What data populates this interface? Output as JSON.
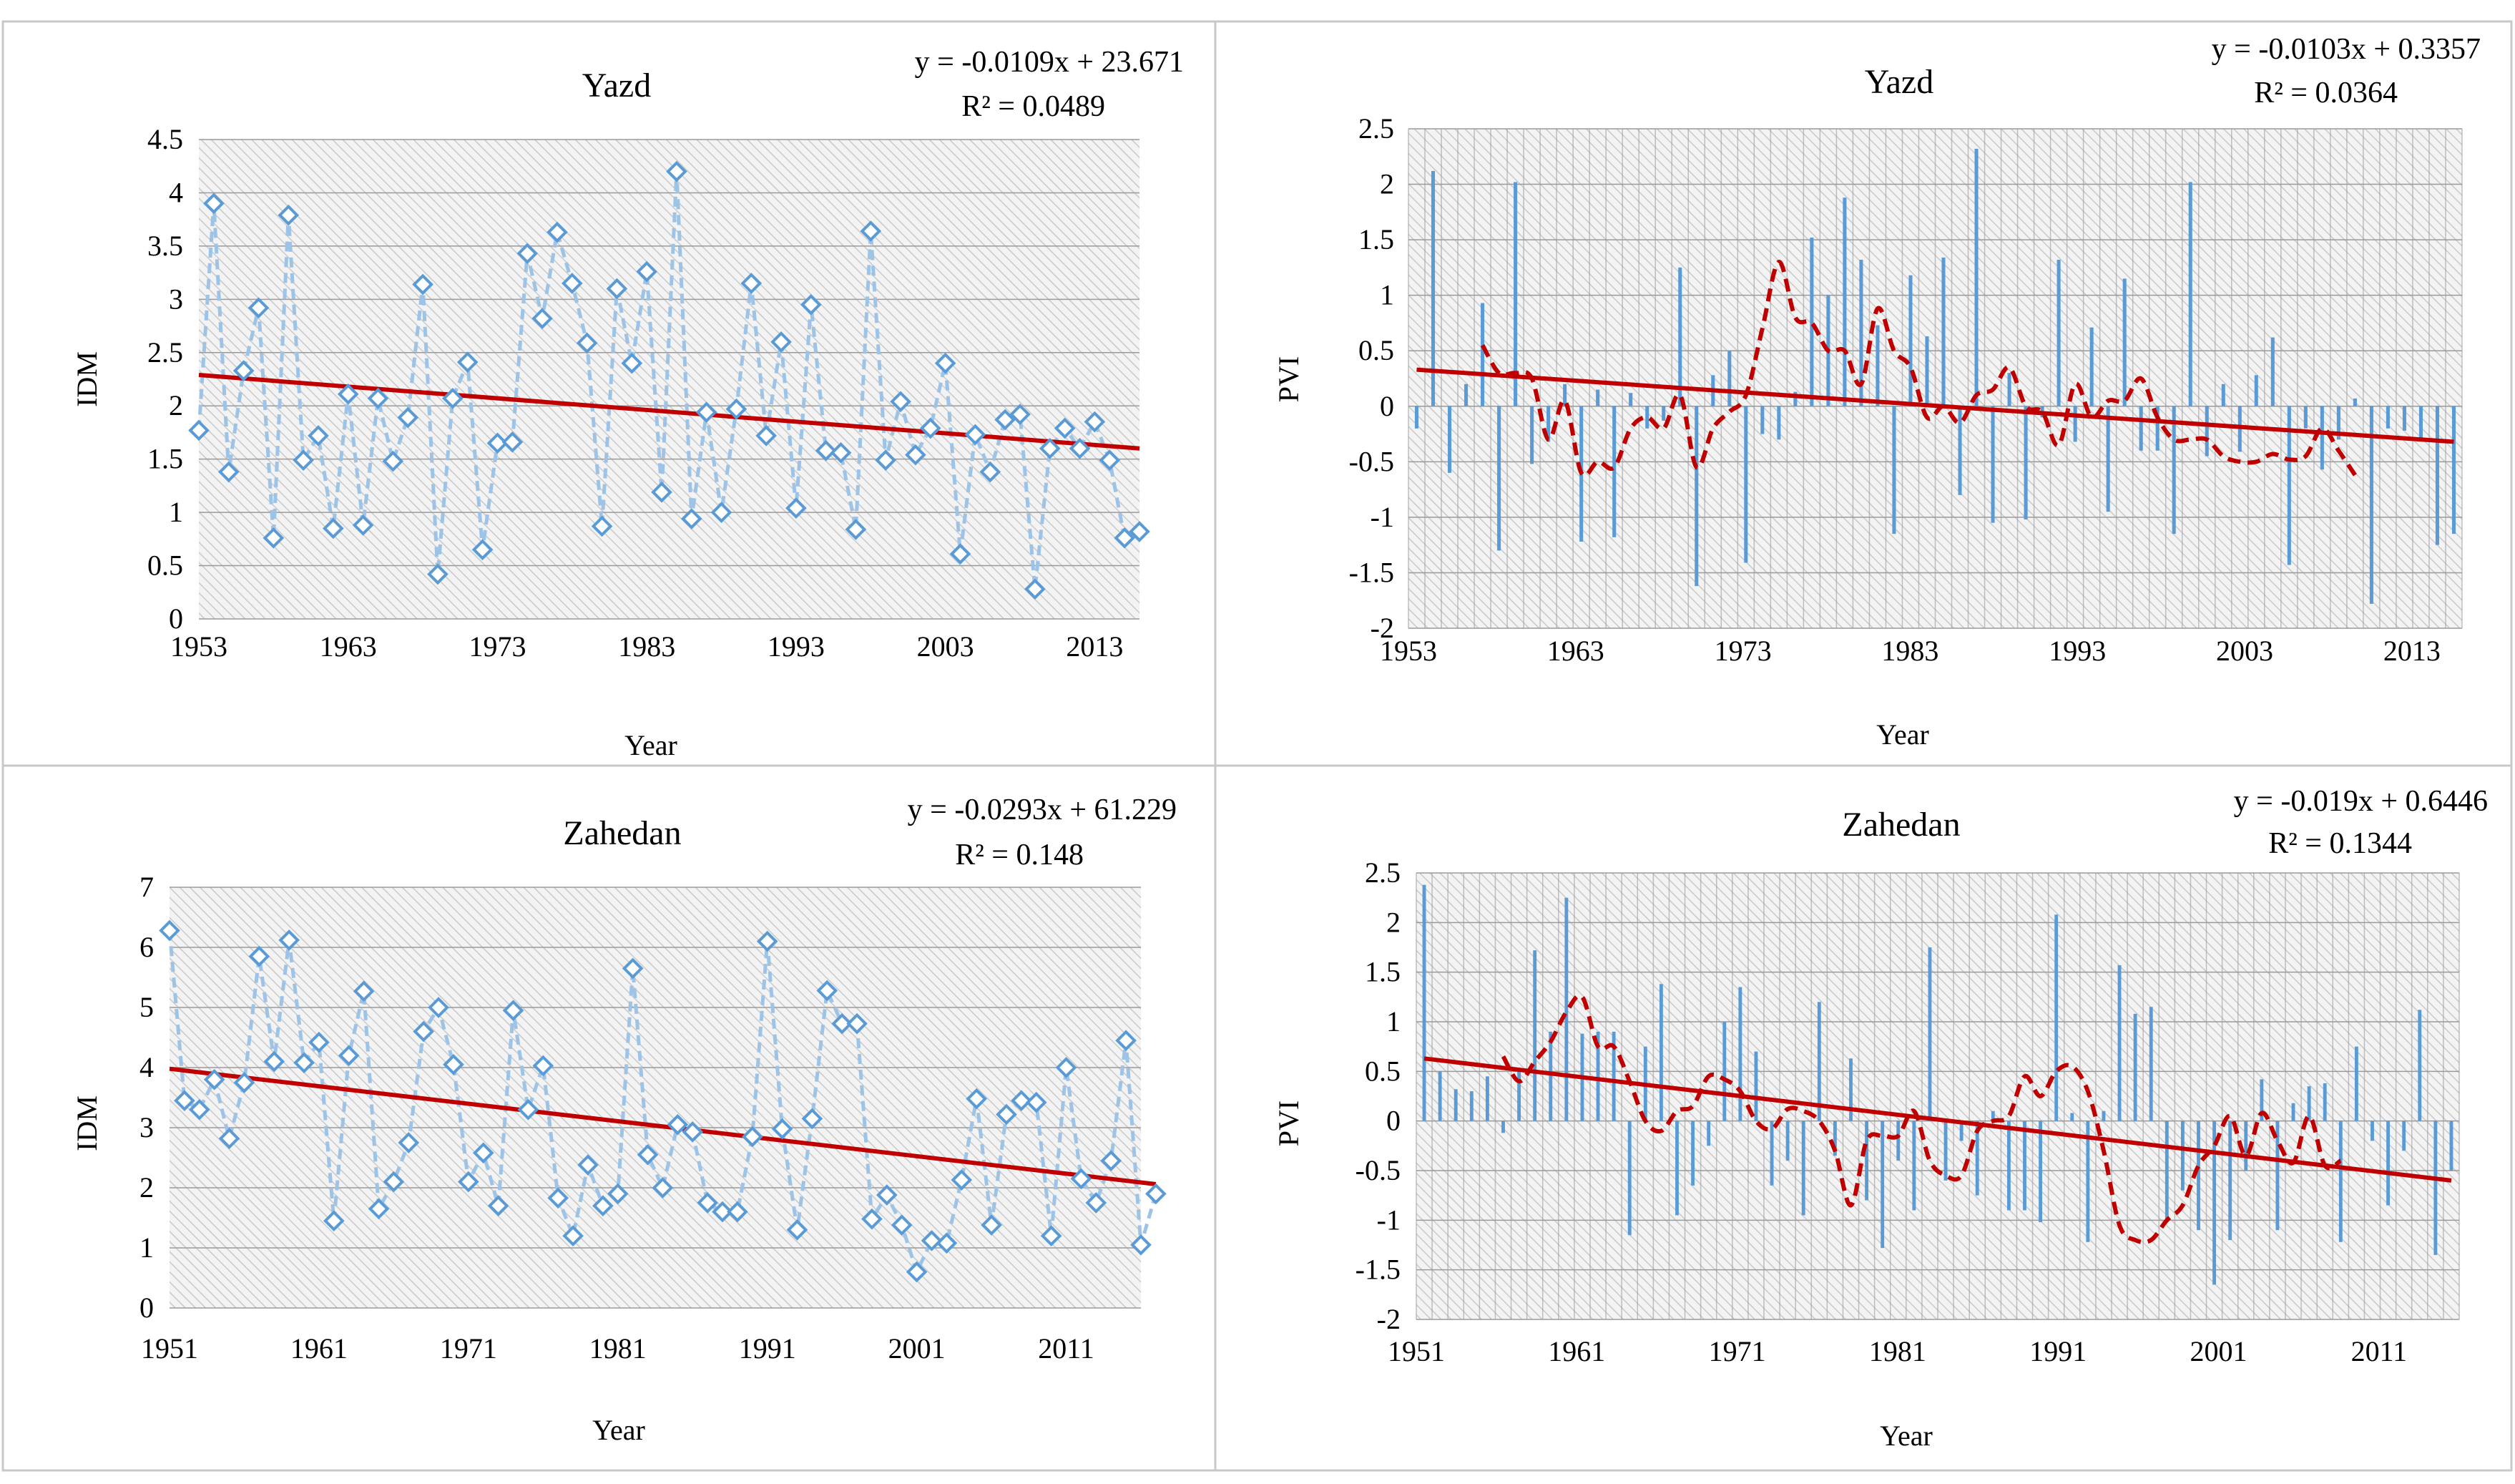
{
  "colors": {
    "series": "#5b9bd5",
    "series_line": "#9dc3e6",
    "trend": "#c00000",
    "moving_avg": "#c00000",
    "plot_bg": "#ededed",
    "hatch": "#c9c9c9"
  },
  "chart_data": [
    {
      "id": "yazd-idm",
      "type": "line",
      "title": "Yazd",
      "xlabel": "Year",
      "ylabel": "IDM",
      "equation": "y = -0.0109x + 23.671",
      "r2": "R² = 0.0489",
      "x_start": 1953,
      "xlim": [
        1953,
        2016
      ],
      "ylim": [
        0,
        4.5
      ],
      "yticks": [
        "0",
        "0.5",
        "1",
        "1.5",
        "2",
        "2.5",
        "3",
        "3.5",
        "4",
        "4.5"
      ],
      "xticks": [
        "1953",
        "1963",
        "1973",
        "1983",
        "1993",
        "2003",
        "2013"
      ],
      "values": [
        1.77,
        3.9,
        1.38,
        2.33,
        2.92,
        0.76,
        3.79,
        1.49,
        1.72,
        0.85,
        2.11,
        0.88,
        2.07,
        1.48,
        1.89,
        3.14,
        0.42,
        2.07,
        2.41,
        0.65,
        1.65,
        1.66,
        3.43,
        2.82,
        3.63,
        3.15,
        2.59,
        0.87,
        3.1,
        2.4,
        3.26,
        1.19,
        4.2,
        0.94,
        1.94,
        1.0,
        1.97,
        3.15,
        1.72,
        2.6,
        1.04,
        2.95,
        1.58,
        1.56,
        0.84,
        3.64,
        1.49,
        2.04,
        1.54,
        1.79,
        2.4,
        0.61,
        1.73,
        1.38,
        1.87,
        1.92,
        0.28,
        1.6,
        1.79,
        1.6,
        1.85,
        1.49,
        0.76,
        0.82
      ],
      "trend_start": 2.29,
      "trend_end": 1.6
    },
    {
      "id": "yazd-pvi",
      "type": "bar",
      "title": "Yazd",
      "xlabel": "Year",
      "ylabel": "PVI",
      "equation": "y = -0.0103x + 0.3357",
      "r2": "R² = 0.0364",
      "x_start": 1953,
      "xlim": [
        1953,
        2016
      ],
      "ylim": [
        -2,
        2.5
      ],
      "yticks": [
        "-2",
        "-1.5",
        "-1",
        "-0.5",
        "0",
        "0.5",
        "1",
        "1.5",
        "2",
        "2.5"
      ],
      "xticks": [
        "1953",
        "1963",
        "1973",
        "1983",
        "1993",
        "2003",
        "2013"
      ],
      "values": [
        -0.2,
        2.12,
        -0.6,
        0.2,
        0.93,
        -1.3,
        2.02,
        -0.52,
        -0.32,
        0.2,
        -1.22,
        0.15,
        -1.18,
        0.12,
        -0.2,
        -0.13,
        1.25,
        -1.62,
        0.28,
        0.5,
        -1.41,
        -0.25,
        -0.3,
        0.13,
        1.52,
        1.0,
        1.88,
        1.32,
        0.73,
        -1.15,
        1.18,
        0.63,
        1.34,
        -0.8,
        2.32,
        -1.05,
        0.3,
        -1.02,
        -0.1,
        1.32,
        -0.32,
        0.71,
        -0.95,
        1.15,
        -0.4,
        -0.4,
        -1.15,
        2.02,
        -0.45,
        0.2,
        -0.41,
        0.28,
        0.62,
        -1.43,
        -0.2,
        -0.57,
        -0.3,
        0.07,
        -1.78,
        -0.2,
        -0.22,
        -0.3,
        -1.25,
        -1.15
      ],
      "moving_avg_start": 4,
      "moving_avg": [
        0.55,
        0.3,
        0.3,
        0.25,
        -0.3,
        0.05,
        -0.6,
        -0.5,
        -0.55,
        -0.2,
        -0.1,
        -0.2,
        0.1,
        -0.55,
        -0.2,
        -0.05,
        0.1,
        0.7,
        1.3,
        0.8,
        0.75,
        0.5,
        0.5,
        0.2,
        0.88,
        0.5,
        0.35,
        -0.1,
        0.0,
        -0.15,
        0.1,
        0.15,
        0.35,
        0.0,
        -0.05,
        -0.35,
        0.2,
        -0.1,
        0.05,
        0.05,
        0.25,
        -0.1,
        -0.3,
        -0.3,
        -0.3,
        -0.45,
        -0.5,
        -0.5,
        -0.43,
        -0.48,
        -0.45,
        -0.2,
        -0.4,
        -0.62
      ],
      "trend_start": 0.33,
      "trend_end": -0.32
    },
    {
      "id": "zahedan-idm",
      "type": "line",
      "title": "Zahedan",
      "xlabel": "Year",
      "ylabel": "IDM",
      "equation": "y = -0.0293x + 61.229",
      "r2": "R² = 0.148",
      "x_start": 1951,
      "xlim": [
        1951,
        2016
      ],
      "ylim": [
        0,
        7
      ],
      "yticks": [
        "0",
        "1",
        "2",
        "3",
        "4",
        "5",
        "6",
        "7"
      ],
      "xticks": [
        "1951",
        "1961",
        "1971",
        "1981",
        "1991",
        "2001",
        "2011"
      ],
      "values": [
        6.28,
        3.45,
        3.3,
        3.8,
        2.82,
        3.75,
        5.85,
        4.1,
        6.12,
        4.08,
        4.42,
        1.45,
        4.2,
        5.27,
        1.65,
        2.1,
        2.75,
        4.6,
        5.0,
        4.05,
        2.1,
        2.58,
        1.7,
        4.95,
        3.3,
        4.03,
        1.83,
        1.2,
        2.38,
        1.7,
        1.9,
        5.65,
        2.55,
        2.0,
        3.05,
        2.93,
        1.75,
        1.6,
        1.6,
        2.85,
        6.1,
        2.98,
        1.3,
        3.15,
        5.28,
        4.73,
        4.73,
        1.48,
        1.88,
        1.38,
        0.6,
        1.12,
        1.08,
        2.13,
        3.48,
        1.38,
        3.22,
        3.45,
        3.42,
        1.2,
        4.0,
        2.15,
        1.75,
        2.45,
        4.45,
        1.05,
        1.9
      ],
      "trend_start": 3.98,
      "trend_end": 2.06
    },
    {
      "id": "zahedan-pvi",
      "type": "bar",
      "title": "Zahedan",
      "xlabel": "Year",
      "ylabel": "PVI",
      "equation": "y = -0.019x + 0.6446",
      "r2": "R² = 0.1344",
      "x_start": 1951,
      "xlim": [
        1951,
        2016
      ],
      "ylim": [
        -2,
        2.5
      ],
      "yticks": [
        "-2",
        "-1.5",
        "-1",
        "-0.5",
        "0",
        "0.5",
        "1",
        "1.5",
        "2",
        "2.5"
      ],
      "xticks": [
        "1951",
        "1961",
        "1971",
        "1981",
        "1991",
        "2001",
        "2011"
      ],
      "values": [
        2.38,
        0.5,
        0.32,
        0.3,
        0.45,
        -0.12,
        0.5,
        1.72,
        0.9,
        2.25,
        0.88,
        0.9,
        0.9,
        -1.15,
        0.75,
        1.38,
        -0.95,
        -0.65,
        -0.25,
        1.0,
        1.35,
        0.7,
        -0.65,
        -0.4,
        -0.95,
        1.2,
        -0.35,
        0.63,
        -0.8,
        -1.28,
        -0.4,
        -0.9,
        1.75,
        -0.6,
        -0.2,
        -0.75,
        0.1,
        -0.9,
        -0.9,
        -1.02,
        2.08,
        0.08,
        -1.22,
        0.1,
        1.57,
        1.08,
        1.15,
        -1.02,
        -0.7,
        -1.1,
        -1.65,
        -1.2,
        -0.5,
        0.42,
        -1.1,
        0.18,
        0.35,
        0.38,
        -1.22,
        0.75,
        -0.2,
        -0.85,
        -0.3,
        1.12,
        -1.35,
        -0.5
      ],
      "moving_avg_start": 5,
      "moving_avg": [
        0.65,
        0.4,
        0.6,
        0.8,
        1.1,
        1.25,
        0.75,
        0.75,
        0.4,
        0.0,
        -0.1,
        0.1,
        0.15,
        0.45,
        0.42,
        0.3,
        0.0,
        -0.08,
        0.12,
        0.1,
        0.0,
        -0.3,
        -0.85,
        -0.2,
        -0.15,
        -0.15,
        0.1,
        -0.4,
        -0.55,
        -0.55,
        -0.1,
        0.0,
        0.05,
        0.45,
        0.25,
        0.5,
        0.55,
        0.3,
        -0.3,
        -1.05,
        -1.2,
        -1.2,
        -1.0,
        -0.85,
        -0.45,
        -0.25,
        0.05,
        -0.35,
        0.08,
        -0.2,
        -0.42,
        0.05,
        -0.45,
        -0.4
      ],
      "trend_start": 0.63,
      "trend_end": -0.6
    }
  ]
}
